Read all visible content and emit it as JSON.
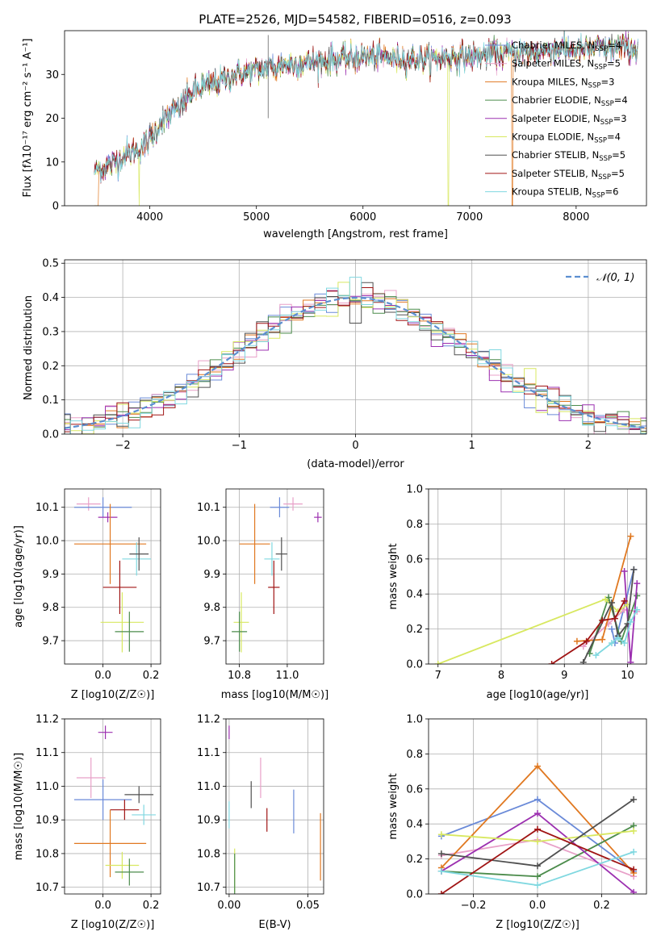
{
  "figure": {
    "title": "PLATE=2526, MJD=54582, FIBERID=0516, z=0.093"
  },
  "colors": {
    "c0": "#6a8ad8",
    "c1": "#e8a0c8",
    "c2": "#e07820",
    "c3": "#4c8c4c",
    "c4": "#9c30b0",
    "c5": "#d8e860",
    "c6": "#505050",
    "c7": "#a01414",
    "c8": "#80d8e0"
  },
  "chart_data": [
    {
      "type": "line",
      "id": "spectrum",
      "xlabel": "wavelength [Angstrom, rest frame]",
      "ylabel": "Flux [fλ10⁻¹⁷ erg cm⁻² s⁻¹ A⁻¹]",
      "xlim": [
        3200,
        8660
      ],
      "ylim": [
        0,
        40
      ],
      "xticks": [
        4000,
        5000,
        6000,
        7000,
        8000
      ],
      "yticks": [
        0,
        10,
        20,
        30
      ],
      "legend_position": "top-right",
      "continuum": {
        "x": [
          3480,
          3600,
          3800,
          3900,
          4000,
          4100,
          4200,
          4300,
          4400,
          4600,
          4800,
          5000,
          5200,
          5400,
          5600,
          5800,
          6000,
          6200,
          6400,
          6600,
          6800,
          7000,
          7200,
          7400,
          7600,
          7800,
          8000,
          8200,
          8400,
          8580
        ],
        "y": [
          8,
          9,
          12,
          13,
          15,
          19,
          21,
          23,
          26,
          28,
          30,
          31,
          32,
          32.5,
          33,
          33.5,
          34,
          34,
          33.5,
          33.5,
          34,
          34,
          34.5,
          35,
          35,
          36,
          35.5,
          36,
          36,
          36
        ]
      },
      "series": [
        {
          "name": "Chabrier MILES, N_SSP=4",
          "label_base": "Chabrier MILES, N",
          "label_sub": "SSP",
          "label_end": "=4",
          "color": "#6a8ad8"
        },
        {
          "name": "Salpeter MILES, N_SSP=5",
          "label_base": "Salpeter MILES, N",
          "label_sub": "SSP",
          "label_end": "=5",
          "color": "#e8a0c8"
        },
        {
          "name": "Kroupa MILES, N_SSP=3",
          "label_base": "Kroupa MILES, N",
          "label_sub": "SSP",
          "label_end": "=3",
          "color": "#e07820"
        },
        {
          "name": "Chabrier ELODIE, N_SSP=4",
          "label_base": "Chabrier ELODIE, N",
          "label_sub": "SSP",
          "label_end": "=4",
          "color": "#4c8c4c"
        },
        {
          "name": "Salpeter ELODIE, N_SSP=3",
          "label_base": "Salpeter ELODIE, N",
          "label_sub": "SSP",
          "label_end": "=3",
          "color": "#9c30b0"
        },
        {
          "name": "Kroupa ELODIE, N_SSP=4",
          "label_base": "Kroupa ELODIE, N",
          "label_sub": "SSP",
          "label_end": "=4",
          "color": "#d8e860"
        },
        {
          "name": "Chabrier STELIB, N_SSP=5",
          "label_base": "Chabrier STELIB, N",
          "label_sub": "SSP",
          "label_end": "=5",
          "color": "#505050"
        },
        {
          "name": "Salpeter STELIB, N_SSP=5",
          "label_base": "Salpeter STELIB, N",
          "label_sub": "SSP",
          "label_end": "=5",
          "color": "#a01414"
        },
        {
          "name": "Kroupa STELIB, N_SSP=6",
          "label_base": "Kroupa STELIB, N",
          "label_sub": "SSP",
          "label_end": "=6",
          "color": "#80d8e0"
        }
      ]
    },
    {
      "type": "histogram",
      "id": "residuals",
      "xlabel": "(data-model)/error",
      "ylabel": "Normed distribution",
      "xlim": [
        -2.5,
        2.5
      ],
      "ylim": [
        0,
        0.51
      ],
      "xticks": [
        -2,
        -1,
        0,
        1,
        2
      ],
      "yticks": [
        0.0,
        0.1,
        0.2,
        0.3,
        0.4,
        0.5
      ],
      "grid": true,
      "bin_width": 0.1,
      "legend": "N(0,1)",
      "legend_position": "top-right",
      "reference_curve": "normal distribution, mean 0, sigma 1, dashed"
    },
    {
      "type": "scatter",
      "id": "age-vs-z",
      "xlabel": "Z [log10(Z/Z☉)]",
      "ylabel": "age [log10(age/yr)]",
      "xlim": [
        -0.16,
        0.24
      ],
      "ylim": [
        9.63,
        10.155
      ],
      "xticks": [
        0.0,
        0.2
      ],
      "yticks": [
        9.7,
        9.8,
        9.9,
        10.0,
        10.1
      ],
      "grid": true,
      "points": [
        {
          "series": 1,
          "x": -0.06,
          "y": 10.11,
          "xerr": 0.05,
          "yerr": 0.02
        },
        {
          "series": 0,
          "x": 0.0,
          "y": 10.1,
          "xerr": 0.12,
          "yerr": 0.03
        },
        {
          "series": 4,
          "x": 0.02,
          "y": 10.07,
          "xerr": 0.04,
          "yerr": 0.015
        },
        {
          "series": 2,
          "x": 0.03,
          "y": 9.99,
          "xerr": 0.15,
          "yerr": 0.12
        },
        {
          "series": 8,
          "x": 0.14,
          "y": 9.945,
          "xerr": 0.06,
          "yerr": 0.05
        },
        {
          "series": 6,
          "x": 0.15,
          "y": 9.96,
          "xerr": 0.04,
          "yerr": 0.05
        },
        {
          "series": 7,
          "x": 0.07,
          "y": 9.86,
          "xerr": 0.07,
          "yerr": 0.08
        },
        {
          "series": 5,
          "x": 0.08,
          "y": 9.755,
          "xerr": 0.09,
          "yerr": 0.09
        },
        {
          "series": 3,
          "x": 0.11,
          "y": 9.727,
          "xerr": 0.06,
          "yerr": 0.06
        }
      ]
    },
    {
      "type": "scatter",
      "id": "age-vs-mass",
      "xlabel": "mass [log10(M/M☉)]",
      "ylabel": "",
      "xlim": [
        10.68,
        11.19
      ],
      "ylim": [
        9.63,
        10.155
      ],
      "xticks": [
        10.75,
        11.0
      ],
      "yticks": [
        9.7,
        9.8,
        9.9,
        10.0,
        10.1
      ],
      "grid": true,
      "points": [
        {
          "series": 1,
          "x": 11.03,
          "y": 10.11,
          "xerr": 0.05,
          "yerr": 0.02
        },
        {
          "series": 0,
          "x": 10.96,
          "y": 10.1,
          "xerr": 0.05,
          "yerr": 0.03
        },
        {
          "series": 4,
          "x": 11.16,
          "y": 10.07,
          "xerr": 0.02,
          "yerr": 0.015
        },
        {
          "series": 2,
          "x": 10.83,
          "y": 9.99,
          "xerr": 0.08,
          "yerr": 0.12
        },
        {
          "series": 8,
          "x": 10.92,
          "y": 9.945,
          "xerr": 0.04,
          "yerr": 0.05
        },
        {
          "series": 6,
          "x": 10.97,
          "y": 9.96,
          "xerr": 0.03,
          "yerr": 0.05
        },
        {
          "series": 7,
          "x": 10.93,
          "y": 9.86,
          "xerr": 0.03,
          "yerr": 0.08
        },
        {
          "series": 5,
          "x": 10.76,
          "y": 9.755,
          "xerr": 0.04,
          "yerr": 0.09
        },
        {
          "series": 3,
          "x": 10.75,
          "y": 9.727,
          "xerr": 0.04,
          "yerr": 0.06
        }
      ]
    },
    {
      "type": "line",
      "id": "weight-vs-age",
      "xlabel": "age [log10(age/yr)]",
      "ylabel": "mass weight",
      "xlim": [
        6.85,
        10.3
      ],
      "ylim": [
        0,
        1
      ],
      "xticks": [
        7,
        8,
        9,
        10
      ],
      "yticks": [
        0.0,
        0.2,
        0.4,
        0.6,
        0.8,
        1.0
      ],
      "grid": true,
      "series": [
        {
          "series": 0,
          "x": [
            9.75,
            9.8,
            10.1
          ],
          "y": [
            0.2,
            0.12,
            0.54
          ]
        },
        {
          "series": 1,
          "x": [
            9.3,
            9.7,
            9.95,
            10.15
          ],
          "y": [
            0.1,
            0.23,
            0.31,
            0.3
          ]
        },
        {
          "series": 2,
          "x": [
            9.2,
            9.6,
            10.05
          ],
          "y": [
            0.13,
            0.14,
            0.73
          ]
        },
        {
          "series": 3,
          "x": [
            9.4,
            9.7,
            9.9,
            10.15
          ],
          "y": [
            0.06,
            0.38,
            0.13,
            0.39
          ]
        },
        {
          "series": 4,
          "x": [
            9.95,
            10.05,
            10.15
          ],
          "y": [
            0.53,
            0.01,
            0.46
          ]
        },
        {
          "series": 5,
          "x": [
            7.0,
            9.65,
            9.85,
            10.0
          ],
          "y": [
            0.0,
            0.37,
            0.3,
            0.34
          ]
        },
        {
          "series": 6,
          "x": [
            9.3,
            9.75,
            9.85,
            10.0,
            10.1
          ],
          "y": [
            0.01,
            0.35,
            0.16,
            0.23,
            0.54
          ]
        },
        {
          "series": 7,
          "x": [
            8.8,
            9.35,
            9.6,
            9.8,
            9.95
          ],
          "y": [
            0.0,
            0.13,
            0.25,
            0.26,
            0.36
          ]
        },
        {
          "series": 8,
          "x": [
            9.5,
            9.75,
            9.85,
            9.95,
            10.05,
            10.15
          ],
          "y": [
            0.05,
            0.12,
            0.15,
            0.12,
            0.24,
            0.31
          ]
        }
      ]
    },
    {
      "type": "scatter",
      "id": "mass-vs-z",
      "xlabel": "Z [log10(Z/Z☉)]",
      "ylabel": "mass [log10(M/M☉)]",
      "xlim": [
        -0.16,
        0.24
      ],
      "ylim": [
        10.68,
        11.2
      ],
      "xticks": [
        0.0,
        0.2
      ],
      "yticks": [
        10.7,
        10.8,
        10.9,
        11.0,
        11.1,
        11.2
      ],
      "grid": true,
      "points": [
        {
          "series": 4,
          "x": 0.01,
          "y": 11.16,
          "xerr": 0.03,
          "yerr": 0.02
        },
        {
          "series": 1,
          "x": -0.05,
          "y": 11.025,
          "xerr": 0.06,
          "yerr": 0.06
        },
        {
          "series": 0,
          "x": 0.0,
          "y": 10.96,
          "xerr": 0.12,
          "yerr": 0.06
        },
        {
          "series": 6,
          "x": 0.15,
          "y": 10.975,
          "xerr": 0.06,
          "yerr": 0.025
        },
        {
          "series": 7,
          "x": 0.09,
          "y": 10.93,
          "xerr": 0.06,
          "yerr": 0.03
        },
        {
          "series": 8,
          "x": 0.17,
          "y": 10.915,
          "xerr": 0.05,
          "yerr": 0.03
        },
        {
          "series": 2,
          "x": 0.03,
          "y": 10.83,
          "xerr": 0.15,
          "yerr": 0.1
        },
        {
          "series": 5,
          "x": 0.08,
          "y": 10.765,
          "xerr": 0.07,
          "yerr": 0.04
        },
        {
          "series": 3,
          "x": 0.11,
          "y": 10.745,
          "xerr": 0.06,
          "yerr": 0.04
        }
      ]
    },
    {
      "type": "errorbar",
      "id": "mass-vs-ebv",
      "xlabel": "E(B-V)",
      "ylabel": "",
      "xlim": [
        -0.002,
        0.06
      ],
      "ylim": [
        10.68,
        11.2
      ],
      "xticks": [
        0.0,
        0.05
      ],
      "yticks": [
        10.7,
        10.8,
        10.9,
        11.0,
        11.1,
        11.2
      ],
      "grid": true,
      "points": [
        {
          "series": 4,
          "x": 0.0,
          "y": 11.16,
          "yerr": 0.02
        },
        {
          "series": 1,
          "x": 0.02,
          "y": 11.025,
          "yerr": 0.06
        },
        {
          "series": 6,
          "x": 0.014,
          "y": 10.975,
          "yerr": 0.04
        },
        {
          "series": 8,
          "x": 0.0,
          "y": 10.915,
          "yerr": 0.04
        },
        {
          "series": 7,
          "x": 0.024,
          "y": 10.9,
          "yerr": 0.035
        },
        {
          "series": 0,
          "x": 0.041,
          "y": 10.925,
          "yerr": 0.065
        },
        {
          "series": 2,
          "x": 0.058,
          "y": 10.82,
          "yerr": 0.1
        },
        {
          "series": 5,
          "x": 0.0035,
          "y": 10.75,
          "yerr": 0.065
        },
        {
          "series": 3,
          "x": 0.0035,
          "y": 10.74,
          "yerr": 0.06
        }
      ]
    },
    {
      "type": "line",
      "id": "weight-vs-z",
      "xlabel": "Z [log10(Z/Z☉)]",
      "ylabel": "mass weight",
      "xlim": [
        -0.34,
        0.34
      ],
      "ylim": [
        0,
        1
      ],
      "xticks": [
        -0.2,
        0.0,
        0.2
      ],
      "yticks": [
        0.0,
        0.2,
        0.4,
        0.6,
        0.8,
        1.0
      ],
      "grid": true,
      "series": [
        {
          "series": 0,
          "x": [
            -0.3,
            0.0,
            0.3
          ],
          "y": [
            0.33,
            0.54,
            0.13
          ]
        },
        {
          "series": 1,
          "x": [
            -0.3,
            0.0,
            0.3
          ],
          "y": [
            0.22,
            0.31,
            0.1
          ]
        },
        {
          "series": 2,
          "x": [
            -0.3,
            0.0,
            0.3
          ],
          "y": [
            0.15,
            0.73,
            0.12
          ]
        },
        {
          "series": 3,
          "x": [
            -0.3,
            0.0,
            0.3
          ],
          "y": [
            0.13,
            0.1,
            0.39
          ]
        },
        {
          "series": 4,
          "x": [
            -0.3,
            0.0,
            0.3
          ],
          "y": [
            0.13,
            0.46,
            0.01
          ]
        },
        {
          "series": 5,
          "x": [
            -0.3,
            0.0,
            0.3
          ],
          "y": [
            0.34,
            0.3,
            0.36
          ]
        },
        {
          "series": 6,
          "x": [
            -0.3,
            0.0,
            0.3
          ],
          "y": [
            0.23,
            0.16,
            0.54
          ]
        },
        {
          "series": 7,
          "x": [
            -0.3,
            0.0,
            0.3
          ],
          "y": [
            0.0,
            0.37,
            0.14
          ]
        },
        {
          "series": 8,
          "x": [
            -0.3,
            0.0,
            0.3
          ],
          "y": [
            0.13,
            0.05,
            0.24
          ]
        }
      ]
    }
  ]
}
